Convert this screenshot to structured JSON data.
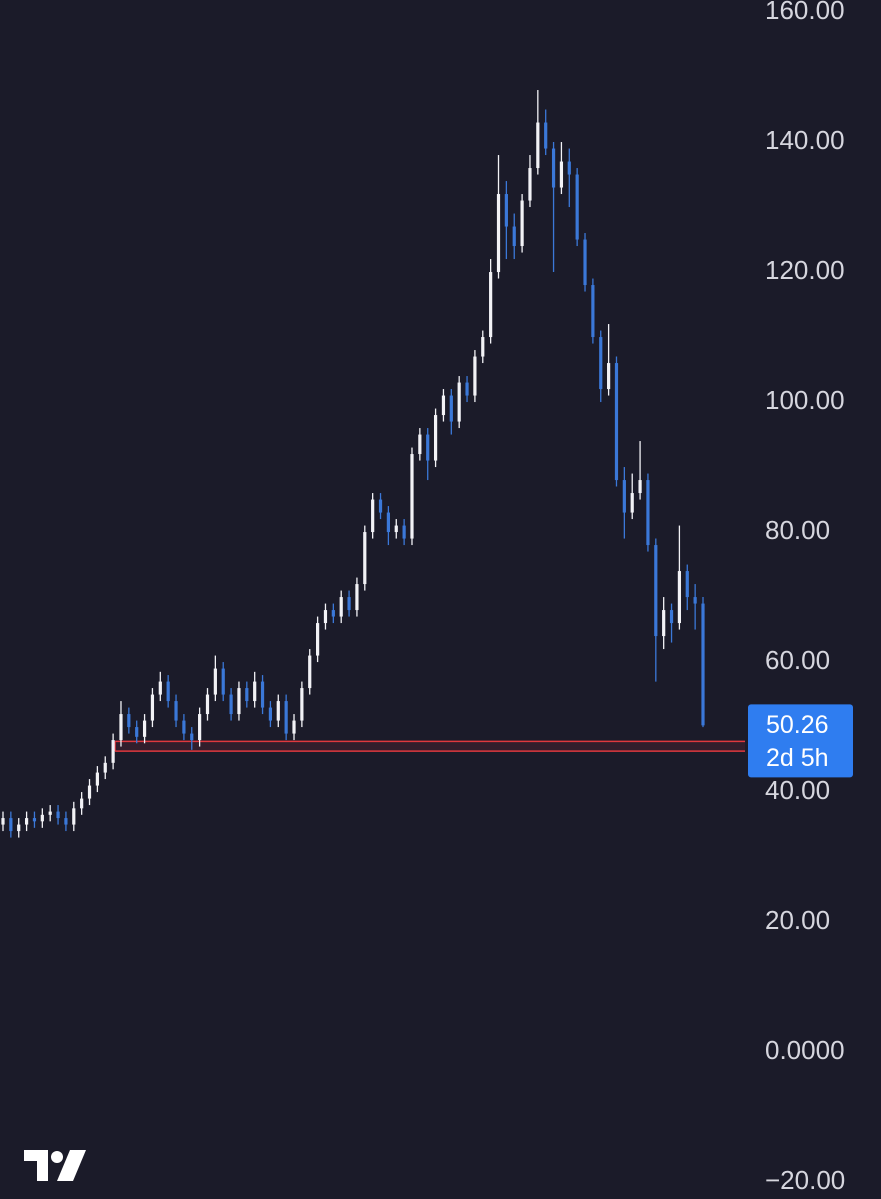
{
  "chart_data": {
    "type": "ohlc",
    "ylim": [
      -22.6,
      161.85
    ],
    "yticks": [
      {
        "value": 160,
        "label": "160.00"
      },
      {
        "value": 140,
        "label": "140.00"
      },
      {
        "value": 120,
        "label": "120.00"
      },
      {
        "value": 100,
        "label": "100.00"
      },
      {
        "value": 80,
        "label": "80.00"
      },
      {
        "value": 60,
        "label": "60.00"
      },
      {
        "value": 40,
        "label": "40.00"
      },
      {
        "value": 20,
        "label": "20.00"
      },
      {
        "value": 0,
        "label": "0.0000"
      },
      {
        "value": -20,
        "label": "−20.00"
      }
    ],
    "grid": false,
    "up_color": "#f2f2f6",
    "down_color": "#3b78d8",
    "open": [
      35,
      36,
      34,
      35,
      36,
      35.5,
      36.5,
      37,
      36,
      35,
      37.5,
      39,
      41,
      43,
      44.5,
      48,
      52,
      50,
      48.5,
      51,
      55,
      57,
      54,
      51,
      49,
      48,
      52,
      55,
      59,
      55,
      52,
      56,
      54,
      57,
      53,
      51,
      54,
      49,
      51,
      56,
      61,
      66,
      68,
      67,
      70,
      68,
      72,
      80,
      85,
      83,
      80,
      81,
      79,
      92,
      95,
      91,
      98,
      101,
      97,
      103,
      101,
      107,
      110,
      120,
      132,
      127,
      124,
      131,
      136,
      143,
      139,
      133,
      137,
      135,
      125,
      118,
      110,
      102,
      106,
      88,
      83,
      86,
      88,
      78,
      64,
      68,
      66,
      74,
      70,
      69
    ],
    "high": [
      37,
      37,
      36,
      37,
      37,
      37.5,
      38,
      38,
      37,
      38.5,
      40,
      42,
      44,
      45.5,
      49,
      54,
      53,
      51,
      52,
      56,
      58.5,
      58,
      55,
      52,
      50,
      53,
      56,
      61,
      60,
      56,
      57,
      57,
      58.5,
      58,
      54,
      55,
      55,
      52,
      57,
      62,
      67,
      69,
      69,
      71,
      71,
      73,
      81,
      86,
      86,
      84,
      82,
      82,
      93,
      96,
      96,
      99,
      102,
      102,
      104,
      104,
      108,
      111,
      122,
      138,
      134,
      129,
      132,
      138,
      148,
      145,
      140,
      140,
      139,
      136,
      126,
      119,
      111,
      112,
      107,
      90,
      89,
      94,
      89,
      79,
      70,
      69,
      81,
      75,
      72,
      70
    ],
    "low": [
      34,
      33,
      33,
      34,
      34.5,
      34.5,
      35.5,
      35,
      34,
      34,
      36.5,
      38,
      40,
      42,
      43.5,
      47,
      49,
      47.5,
      47.5,
      50,
      54,
      53,
      50,
      48,
      46.5,
      47,
      51,
      54,
      54,
      51,
      51,
      53,
      53,
      52,
      50,
      50,
      48,
      48,
      50,
      55,
      60,
      65,
      66,
      66,
      67,
      67,
      71,
      79,
      82,
      78,
      79,
      78,
      78,
      91,
      88,
      90,
      97,
      95,
      96,
      100,
      100,
      106,
      109,
      119,
      122,
      122,
      123,
      130,
      135,
      138,
      120,
      132,
      130,
      124,
      117,
      109,
      100,
      101,
      87,
      79,
      82,
      85,
      77,
      57,
      62,
      63,
      65,
      68,
      65,
      50
    ],
    "close": [
      36,
      34,
      35,
      36,
      35.5,
      36.5,
      37,
      36,
      35,
      37.5,
      39,
      41,
      43,
      44.5,
      48,
      52,
      50,
      48.5,
      51,
      55,
      57,
      54,
      51,
      49,
      48,
      52,
      55,
      59,
      55,
      52,
      56,
      54,
      57,
      53,
      51,
      54,
      49,
      51,
      56,
      61,
      66,
      68,
      67,
      70,
      68,
      72,
      80,
      85,
      83,
      80,
      81,
      79,
      92,
      95,
      91,
      98,
      101,
      97,
      103,
      101,
      107,
      110,
      120,
      132,
      127,
      124,
      131,
      136,
      143,
      139,
      133,
      137,
      135,
      125,
      118,
      110,
      102,
      106,
      88,
      83,
      86,
      88,
      78,
      64,
      68,
      66,
      74,
      70,
      69,
      50.26
    ],
    "last_price": {
      "value": 50.26,
      "label": "50.26"
    },
    "countdown": "2d 5h",
    "zone": {
      "from": 46.3,
      "to": 47.8,
      "color": "#e0393e"
    }
  }
}
